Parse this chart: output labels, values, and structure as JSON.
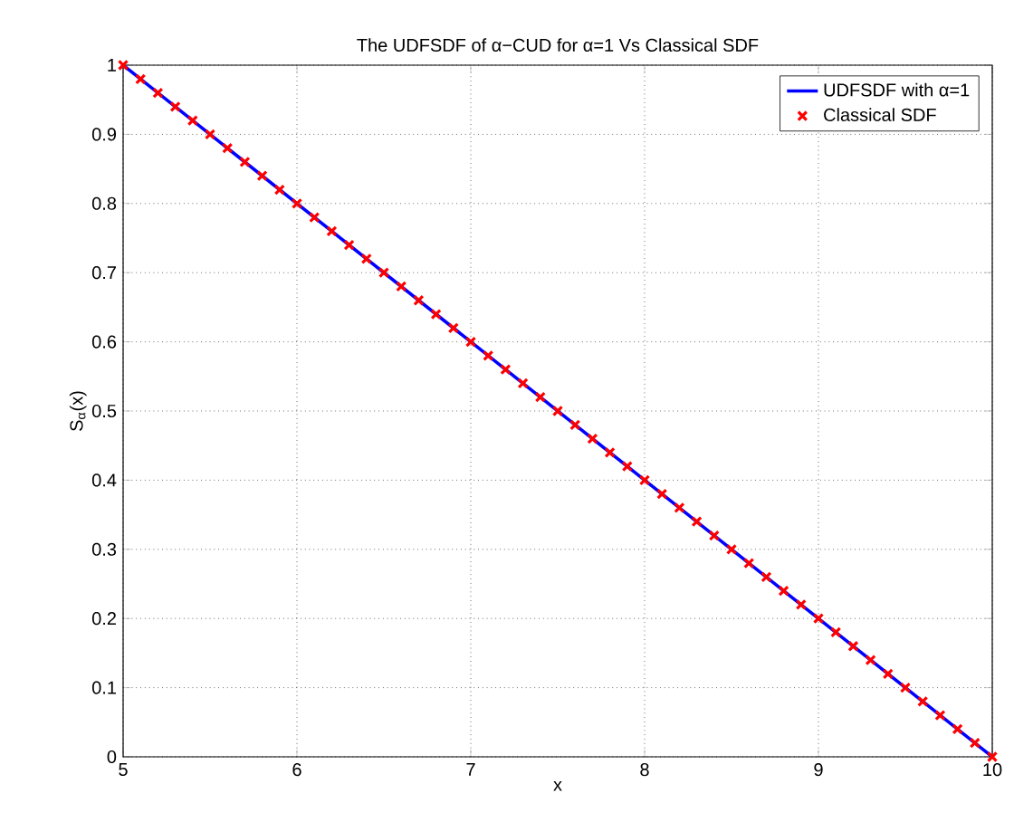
{
  "chart_data": {
    "type": "line",
    "title": "The UDFSDF of α−CUD for α=1 Vs Classical SDF",
    "xlabel": "x",
    "ylabel": "S$_{α}$(x)",
    "xlim": [
      5,
      10
    ],
    "ylim": [
      0,
      1
    ],
    "xticks": [
      5,
      6,
      7,
      8,
      9,
      10
    ],
    "yticks": [
      0,
      0.1,
      0.2,
      0.3,
      0.4,
      0.5,
      0.6,
      0.7,
      0.8,
      0.9,
      1
    ],
    "grid": true,
    "legend": "top right",
    "series": [
      {
        "name": "UDFSDF with α=1",
        "color": "#0000ff",
        "marker": "none",
        "line_style": "solid",
        "x": [
          5,
          10
        ],
        "values": [
          1,
          0
        ]
      },
      {
        "name": "Classical SDF",
        "type": "scatter",
        "color": "#ff0000",
        "marker": "cross",
        "x": [
          5,
          5.1,
          5.2,
          5.3,
          5.4,
          5.5,
          5.6,
          5.7,
          5.8,
          5.9,
          6,
          6.1,
          6.2,
          6.3,
          6.4,
          6.5,
          6.6,
          6.7,
          6.8,
          6.9,
          7,
          7.1,
          7.2,
          7.3,
          7.4,
          7.5,
          7.6,
          7.7,
          7.8,
          7.9,
          8,
          8.1,
          8.2,
          8.3,
          8.4,
          8.5,
          8.6,
          8.7,
          8.8,
          8.9,
          9,
          9.1,
          9.2,
          9.3,
          9.4,
          9.5,
          9.6,
          9.7,
          9.8,
          9.9,
          10
        ],
        "values": [
          1,
          0.98,
          0.96,
          0.94,
          0.92,
          0.9,
          0.88,
          0.86,
          0.84,
          0.82,
          0.8,
          0.78,
          0.76,
          0.74,
          0.72,
          0.7,
          0.68,
          0.66,
          0.64,
          0.62,
          0.6,
          0.58,
          0.56,
          0.54,
          0.52,
          0.5,
          0.48,
          0.46,
          0.44,
          0.42,
          0.4,
          0.38,
          0.36,
          0.34,
          0.32,
          0.3,
          0.28,
          0.26,
          0.24,
          0.22,
          0.2,
          0.18,
          0.16,
          0.14,
          0.12,
          0.1,
          0.08,
          0.06,
          0.04,
          0.02,
          0
        ]
      }
    ]
  }
}
